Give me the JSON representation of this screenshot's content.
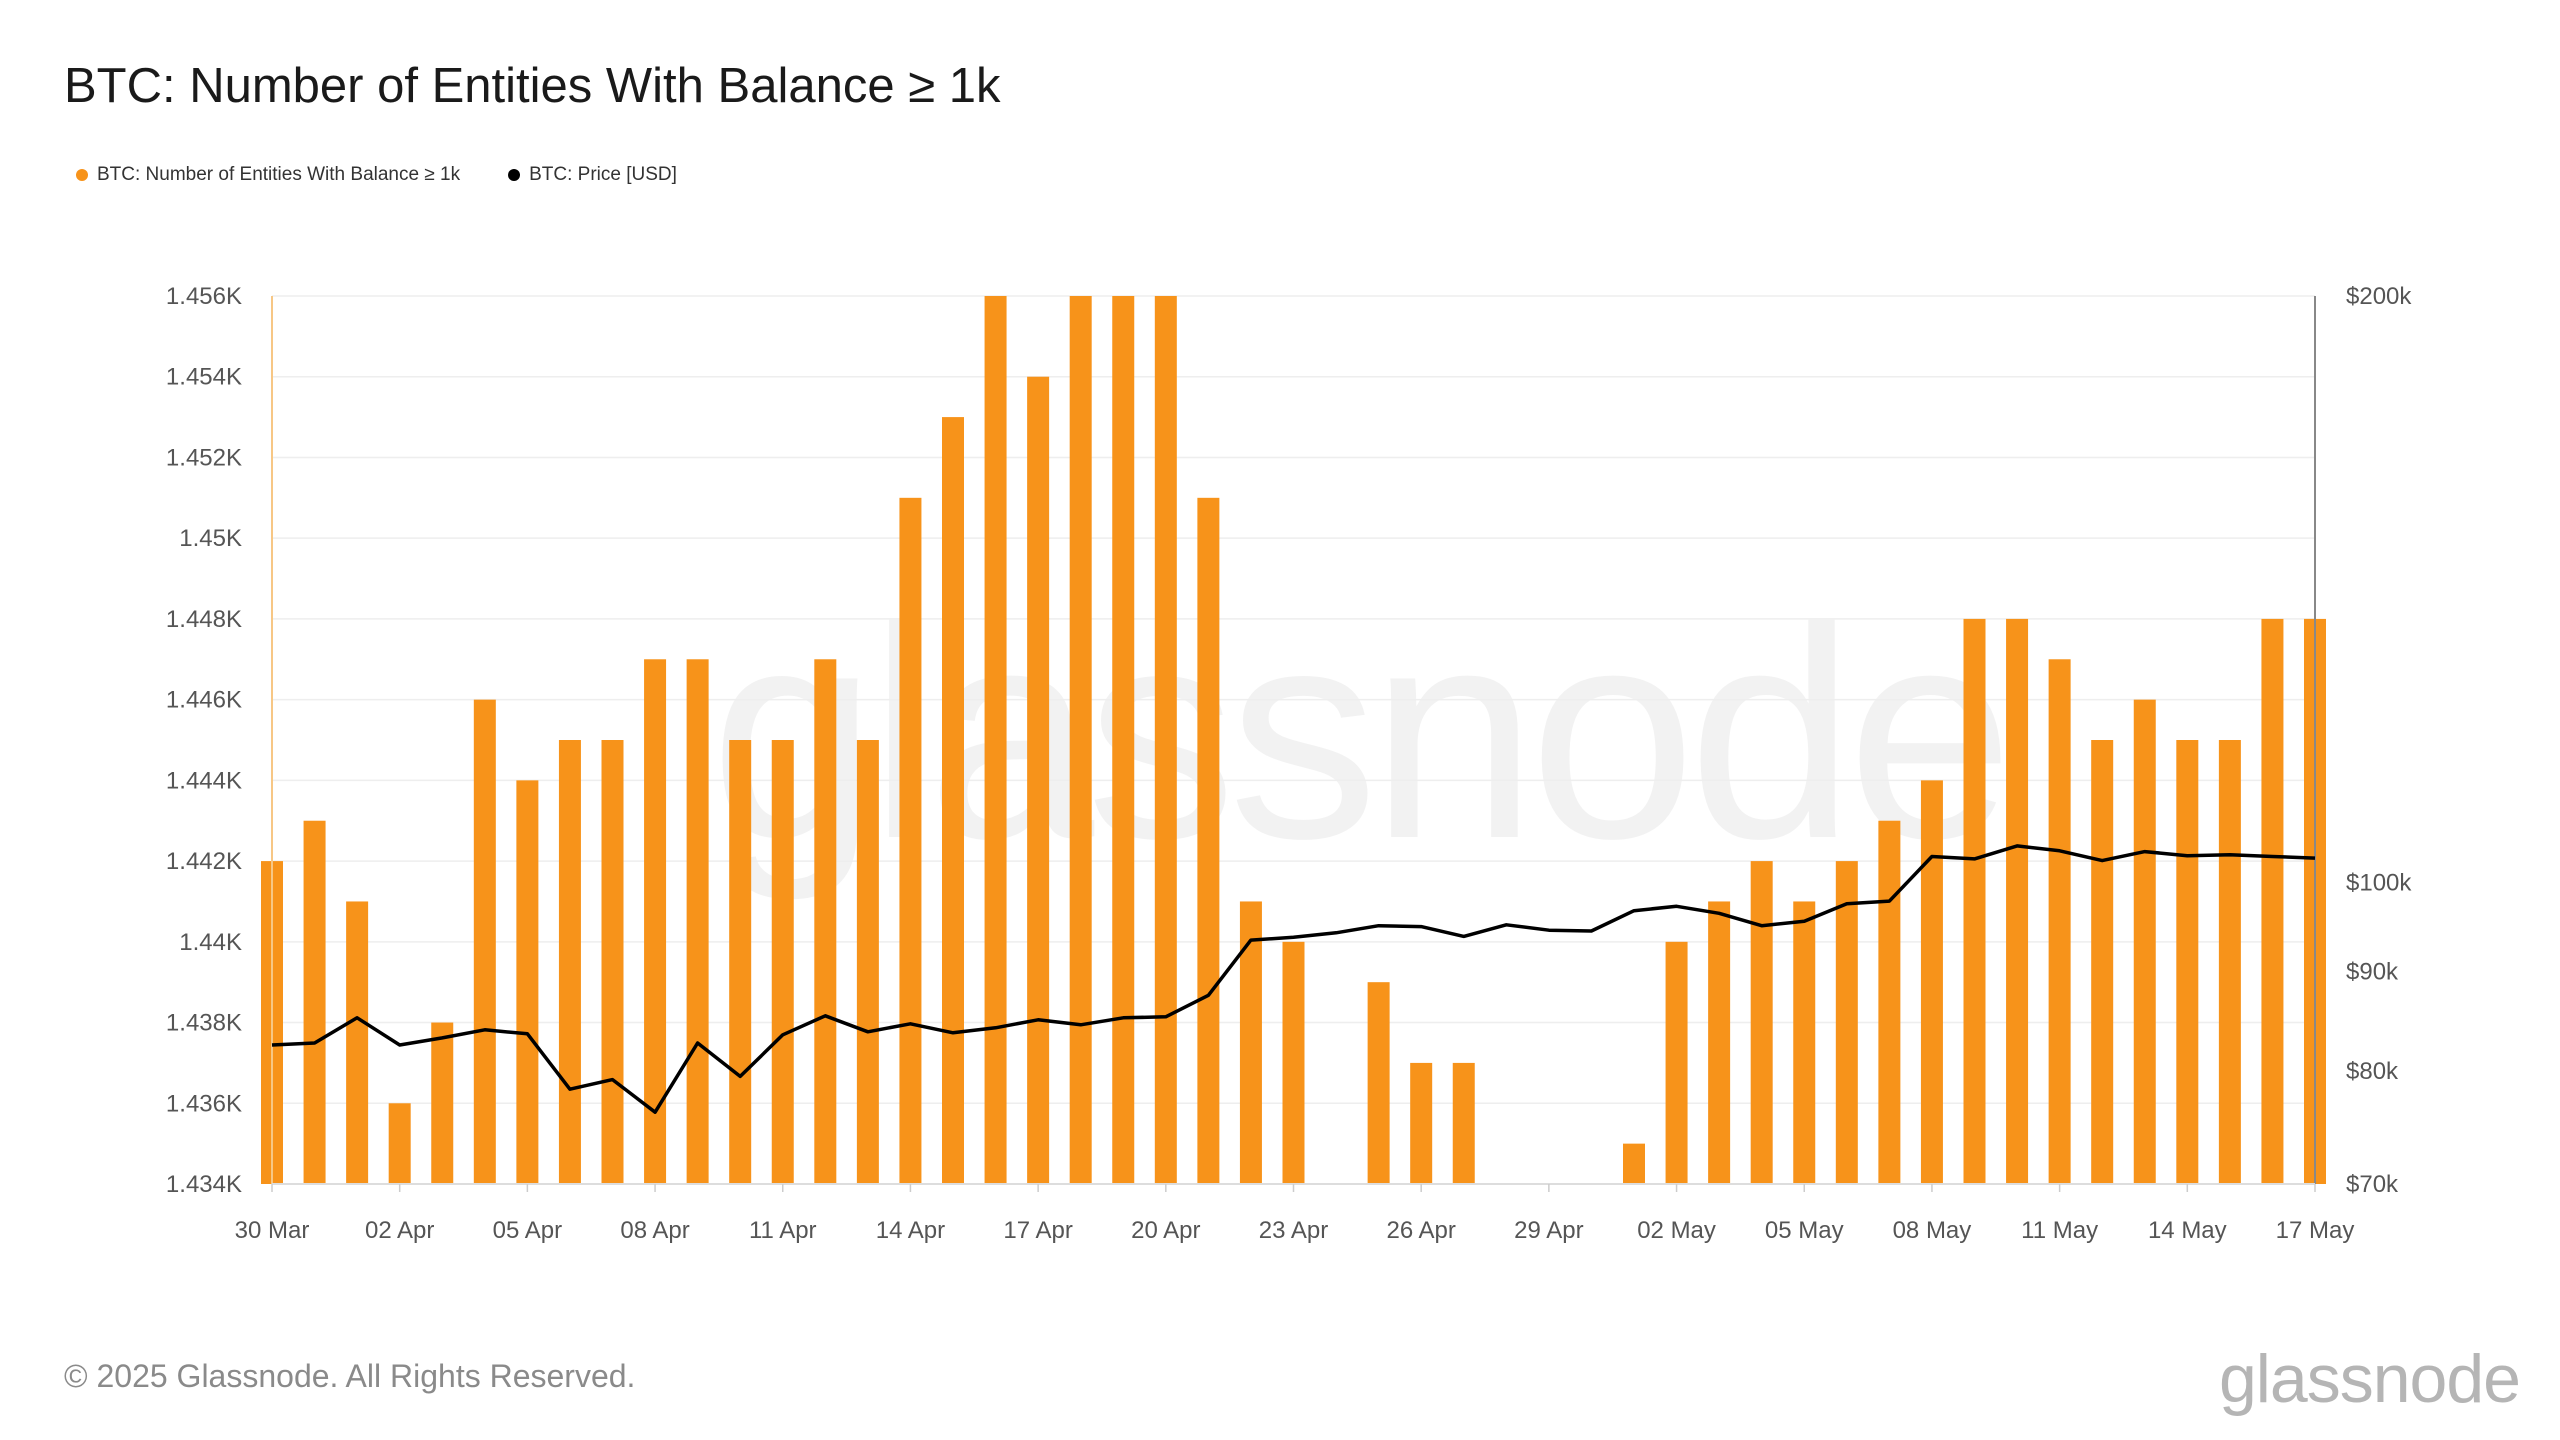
{
  "title": "BTC: Number of Entities With Balance ≥ 1k",
  "watermark": "glassnode",
  "footer": {
    "copyright": "© 2025 Glassnode. All Rights Reserved.",
    "logo": "glassnode"
  },
  "colors": {
    "bars": "#f7931a",
    "price_line": "#000000",
    "grid": "#eeeeee"
  },
  "chart_data": {
    "type": "bar",
    "title": "BTC: Number of Entities With Balance ≥ 1k",
    "legend_placement": "top-left",
    "grid": true,
    "x_labels": [
      "30 Mar",
      "02 Apr",
      "05 Apr",
      "08 Apr",
      "11 Apr",
      "14 Apr",
      "17 Apr",
      "20 Apr",
      "23 Apr",
      "26 Apr",
      "29 Apr",
      "02 May",
      "05 May",
      "08 May",
      "11 May",
      "14 May",
      "17 May"
    ],
    "categories": [
      "30 Mar",
      "31 Mar",
      "01 Apr",
      "02 Apr",
      "03 Apr",
      "04 Apr",
      "05 Apr",
      "06 Apr",
      "07 Apr",
      "08 Apr",
      "09 Apr",
      "10 Apr",
      "11 Apr",
      "12 Apr",
      "13 Apr",
      "14 Apr",
      "15 Apr",
      "16 Apr",
      "17 Apr",
      "18 Apr",
      "19 Apr",
      "20 Apr",
      "21 Apr",
      "22 Apr",
      "23 Apr",
      "24 Apr",
      "25 Apr",
      "26 Apr",
      "27 Apr",
      "28 Apr",
      "29 Apr",
      "30 Apr",
      "01 May",
      "02 May",
      "03 May",
      "04 May",
      "05 May",
      "06 May",
      "07 May",
      "08 May",
      "09 May",
      "10 May",
      "11 May",
      "12 May",
      "13 May",
      "14 May",
      "15 May",
      "16 May",
      "17 May"
    ],
    "series": [
      {
        "name": "BTC: Number of Entities With Balance ≥ 1k",
        "type": "bar",
        "axis": "left",
        "values": [
          1442,
          1443,
          1441,
          1436,
          1438,
          1446,
          1444,
          1445,
          1445,
          1447,
          1447,
          1445,
          1445,
          1447,
          1445,
          1451,
          1453,
          1456,
          1454,
          1456,
          1456,
          1456,
          1451,
          1441,
          1440,
          1434,
          1439,
          1437,
          1437,
          1434,
          1434,
          1434,
          1435,
          1440,
          1441,
          1442,
          1441,
          1442,
          1443,
          1444,
          1448,
          1448,
          1447,
          1445,
          1446,
          1445,
          1445,
          1448,
          1448
        ]
      },
      {
        "name": "BTC: Price [USD]",
        "type": "line",
        "axis": "right",
        "values": [
          82500,
          82700,
          85200,
          82500,
          83200,
          84000,
          83600,
          78300,
          79200,
          76200,
          82700,
          79500,
          83500,
          85400,
          83800,
          84600,
          83700,
          84200,
          85000,
          84500,
          85200,
          85300,
          87500,
          93400,
          93700,
          94200,
          95000,
          94900,
          93800,
          95100,
          94500,
          94400,
          96700,
          97200,
          96400,
          95000,
          95500,
          97500,
          97800,
          103100,
          102800,
          104400,
          103800,
          102600,
          103700,
          103200,
          103300,
          103100,
          102900
        ]
      }
    ],
    "y_left": {
      "ticks": [
        "1.434K",
        "1.436K",
        "1.438K",
        "1.44K",
        "1.442K",
        "1.444K",
        "1.446K",
        "1.448K",
        "1.45K",
        "1.452K",
        "1.454K",
        "1.456K"
      ],
      "min": 1434,
      "max": 1456
    },
    "y_right": {
      "ticks": [
        "$70k",
        "$80k",
        "$90k",
        "$100k",
        "$200k"
      ],
      "tick_values": [
        70000,
        80000,
        90000,
        100000,
        200000
      ],
      "scale": "log",
      "min": 70000,
      "max": 200000
    }
  }
}
